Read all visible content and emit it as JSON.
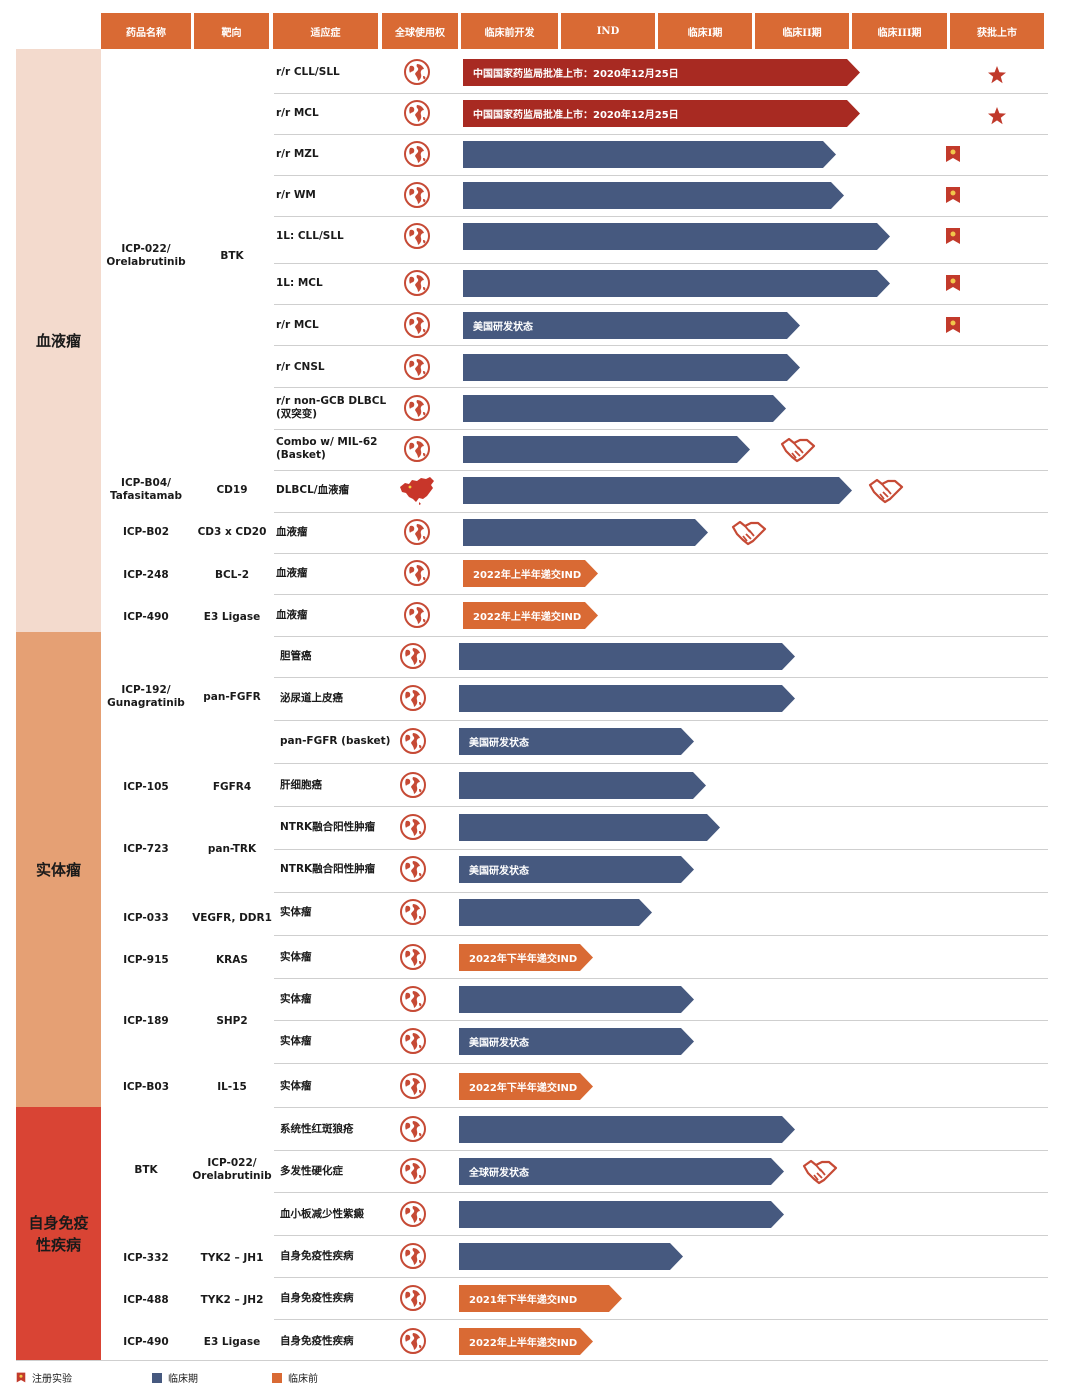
{
  "headers": [
    "药品名称",
    "靶向",
    "适应症",
    "全球使用权",
    "临床前开发",
    "IND",
    "临床I期",
    "临床II期",
    "临床III期",
    "获批上市"
  ],
  "categories": [
    {
      "label": "血液瘤",
      "color": "#f3dacd"
    },
    {
      "label": "实体瘤",
      "color": "#e5a074"
    },
    {
      "label": "自身免疫性疾病",
      "color": "#d94434"
    }
  ],
  "drugs": [
    {
      "name": "ICP-022/\nOrelabrutinib",
      "target": "BTK"
    },
    {
      "name": "ICP-B04/\nTafasitamab",
      "target": "CD19"
    },
    {
      "name": "ICP-B02",
      "target": "CD3 x CD20"
    },
    {
      "name": "ICP-248",
      "target": "BCL-2"
    },
    {
      "name": "ICP-490",
      "target": "E3 Ligase"
    },
    {
      "name": "ICP-192/\nGunagratinib",
      "target": "pan-FGFR"
    },
    {
      "name": "ICP-105",
      "target": "FGFR4"
    },
    {
      "name": "ICP-723",
      "target": "pan-TRK"
    },
    {
      "name": "ICP-033",
      "target": "VEGFR, DDR1"
    },
    {
      "name": "ICP-915",
      "target": "KRAS"
    },
    {
      "name": "ICP-189",
      "target": "SHP2"
    },
    {
      "name": "ICP-B03",
      "target": "IL-15"
    },
    {
      "name": "BTK",
      "target": "ICP-022/\nOrelabrutinib"
    },
    {
      "name": "ICP-332",
      "target": "TYK2 – JH1"
    },
    {
      "name": "ICP-488",
      "target": "TYK2 – JH2"
    },
    {
      "name": "ICP-490",
      "target": "E3 Ligase"
    }
  ],
  "rows": [
    {
      "indication": "r/r CLL/SLL",
      "bar_type": "approved",
      "bar_label": "中国国家药监局批准上市：2020年12月25日",
      "stage_end": "临床III期",
      "mark": "star",
      "rights": "global"
    },
    {
      "indication": "r/r MCL",
      "bar_type": "approved",
      "bar_label": "中国国家药监局批准上市：2020年12月25日",
      "stage_end": "临床III期",
      "mark": "star",
      "rights": "global"
    },
    {
      "indication": "r/r MZL",
      "bar_type": "clinical",
      "bar_label": "",
      "stage_end": "临床II期",
      "mark": "registration",
      "rights": "global"
    },
    {
      "indication": "r/r WM",
      "bar_type": "clinical",
      "bar_label": "",
      "stage_end": "临床II期",
      "mark": "registration",
      "rights": "global"
    },
    {
      "indication": "1L: CLL/SLL",
      "bar_type": "clinical",
      "bar_label": "",
      "stage_end": "临床III期",
      "mark": "registration",
      "rights": "global"
    },
    {
      "indication": "1L: MCL",
      "bar_type": "clinical",
      "bar_label": "",
      "stage_end": "临床III期",
      "mark": "registration",
      "rights": "global"
    },
    {
      "indication": "r/r MCL",
      "bar_type": "clinical",
      "bar_label": "美国研发状态",
      "stage_end": "临床II期",
      "mark": "registration",
      "rights": "global"
    },
    {
      "indication": "r/r CNSL",
      "bar_type": "clinical",
      "bar_label": "",
      "stage_end": "临床II期",
      "mark": "",
      "rights": "global"
    },
    {
      "indication": "r/r non-GCB DLBCL\n(双突变)",
      "bar_type": "clinical",
      "bar_label": "",
      "stage_end": "临床II期",
      "mark": "",
      "rights": "global"
    },
    {
      "indication": "Combo w/ MIL-62\n(Basket)",
      "bar_type": "clinical",
      "bar_label": "",
      "stage_end": "临床I期",
      "mark": "handshake",
      "rights": "global"
    },
    {
      "indication": "DLBCL/血液瘤",
      "bar_type": "clinical",
      "bar_label": "",
      "stage_end": "临床II期",
      "mark": "handshake",
      "rights": "china"
    },
    {
      "indication": "血液瘤",
      "bar_type": "clinical",
      "bar_label": "",
      "stage_end": "临床I期",
      "mark": "handshake",
      "rights": "global"
    },
    {
      "indication": "血液瘤",
      "bar_type": "preclinical",
      "bar_label": "2022年上半年递交IND",
      "stage_end": "IND",
      "mark": "",
      "rights": "global"
    },
    {
      "indication": "血液瘤",
      "bar_type": "preclinical",
      "bar_label": "2022年上半年递交IND",
      "stage_end": "IND",
      "mark": "",
      "rights": "global"
    },
    {
      "indication": "胆管癌",
      "bar_type": "clinical",
      "bar_label": "",
      "stage_end": "临床II期",
      "mark": "",
      "rights": "global"
    },
    {
      "indication": "泌尿道上皮癌",
      "bar_type": "clinical",
      "bar_label": "",
      "stage_end": "临床II期",
      "mark": "",
      "rights": "global"
    },
    {
      "indication": "pan-FGFR (basket)",
      "bar_type": "clinical",
      "bar_label": "美国研发状态",
      "stage_end": "临床I期",
      "mark": "",
      "rights": "global"
    },
    {
      "indication": "肝细胞癌",
      "bar_type": "clinical",
      "bar_label": "",
      "stage_end": "临床I期",
      "mark": "",
      "rights": "global"
    },
    {
      "indication": "NTRK融合阳性肿瘤",
      "bar_type": "clinical",
      "bar_label": "",
      "stage_end": "临床I期",
      "mark": "",
      "rights": "global"
    },
    {
      "indication": "NTRK融合阳性肿瘤",
      "bar_type": "clinical",
      "bar_label": "美国研发状态",
      "stage_end": "临床I期",
      "mark": "",
      "rights": "global"
    },
    {
      "indication": "实体瘤",
      "bar_type": "clinical",
      "bar_label": "",
      "stage_end": "临床I期",
      "mark": "",
      "rights": "global"
    },
    {
      "indication": "实体瘤",
      "bar_type": "preclinical",
      "bar_label": "2022年下半年递交IND",
      "stage_end": "IND",
      "mark": "",
      "rights": "global"
    },
    {
      "indication": "实体瘤",
      "bar_type": "clinical",
      "bar_label": "",
      "stage_end": "临床I期",
      "mark": "",
      "rights": "global"
    },
    {
      "indication": "实体瘤",
      "bar_type": "clinical",
      "bar_label": "美国研发状态",
      "stage_end": "临床I期",
      "mark": "",
      "rights": "global"
    },
    {
      "indication": "实体瘤",
      "bar_type": "preclinical",
      "bar_label": "2022年下半年递交IND",
      "stage_end": "IND",
      "mark": "",
      "rights": "global"
    },
    {
      "indication": "系统性红斑狼疮",
      "bar_type": "clinical",
      "bar_label": "",
      "stage_end": "临床II期",
      "mark": "",
      "rights": "global"
    },
    {
      "indication": "多发性硬化症",
      "bar_type": "clinical",
      "bar_label": "全球研发状态",
      "stage_end": "临床II期",
      "mark": "handshake",
      "rights": "global"
    },
    {
      "indication": "血小板减少性紫癜",
      "bar_type": "clinical",
      "bar_label": "",
      "stage_end": "临床II期",
      "mark": "",
      "rights": "global"
    },
    {
      "indication": "自身免疫性疾病",
      "bar_type": "clinical",
      "bar_label": "",
      "stage_end": "临床I期",
      "mark": "",
      "rights": "global"
    },
    {
      "indication": "自身免疫性疾病",
      "bar_type": "preclinical",
      "bar_label": "2021年下半年递交IND",
      "stage_end": "IND",
      "mark": "",
      "rights": "global"
    },
    {
      "indication": "自身免疫性疾病",
      "bar_type": "preclinical",
      "bar_label": "2022年上半年递交IND",
      "stage_end": "IND",
      "mark": "",
      "rights": "global"
    }
  ],
  "legend": [
    {
      "label": "注册实验",
      "color": "#c23a2b",
      "icon": "registration-flag"
    },
    {
      "label": "临床期",
      "color": "#46597f"
    },
    {
      "label": "临床前",
      "color": "#d96a34"
    }
  ],
  "colors": {
    "header": "#d96a34",
    "approved": "#a82a22",
    "clinical": "#46597f",
    "preclinical": "#d96a34",
    "globe": "#c64a35",
    "star": "#c0392b"
  }
}
